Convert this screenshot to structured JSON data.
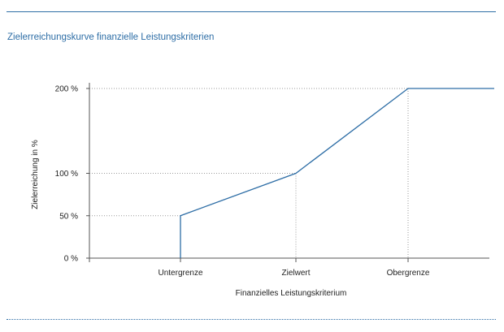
{
  "chart_data": {
    "type": "line",
    "title": "Zielerreichungskurve finanzielle Leistungskriterien",
    "xlabel": "Finanzielles Leistungskriterium",
    "ylabel": "Zielerreichung in %",
    "x_categories": [
      "Untergrenze",
      "Zielwert",
      "Obergrenze"
    ],
    "y_ticks": [
      {
        "value": 0,
        "label": "0 %"
      },
      {
        "value": 50,
        "label": "50 %"
      },
      {
        "value": 100,
        "label": "100 %"
      },
      {
        "value": 200,
        "label": "200 %"
      }
    ],
    "ylim": [
      0,
      200
    ],
    "series": [
      {
        "color": "#2e6ea6",
        "points": [
          {
            "x": "Untergrenze",
            "y": 0
          },
          {
            "x": "Untergrenze",
            "y": 50
          },
          {
            "x": "Zielwert",
            "y": 100
          },
          {
            "x": "Obergrenze",
            "y": 200
          },
          {
            "x": "beyond Obergrenze",
            "y": 200
          }
        ]
      }
    ],
    "guide_lines": "dotted",
    "grid": false
  },
  "colors": {
    "accent": "#2e6ea6",
    "guide": "#9a9a9a",
    "axis": "#555555"
  }
}
